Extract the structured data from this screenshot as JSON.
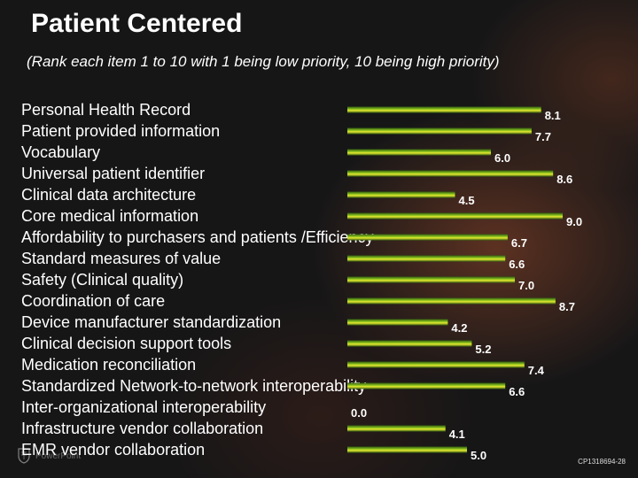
{
  "title": "Patient Centered",
  "subtitle": "(Rank each item 1 to 10 with 1 being low priority, 10 being high priority)",
  "footer_code": "CP1318694-28",
  "watermark_text": "PowerPoint",
  "colors": {
    "bar_dark": "#2d5a10",
    "bar_mid": "#9acd20",
    "bar_light": "#e8e830",
    "label": "#ffffff",
    "background": "#161617"
  },
  "chart_data": {
    "type": "bar",
    "orientation": "horizontal",
    "categories": [
      "Personal Health Record",
      "Patient provided information",
      "Vocabulary",
      "Universal patient identifier",
      "Clinical data architecture",
      "Core medical information",
      "Affordability to purchasers and patients /Efficiency",
      "Standard measures of value",
      "Safety (Clinical quality)",
      "Coordination of care",
      "Device manufacturer standardization",
      "Clinical decision support tools",
      "Medication reconciliation",
      "Standardized Network-to-network interoperability",
      "Inter-organizational interoperability",
      "Infrastructure vendor collaboration",
      "EMR vendor collaboration"
    ],
    "values": [
      8.1,
      7.7,
      6.0,
      8.6,
      4.5,
      9.0,
      6.7,
      6.6,
      7.0,
      8.7,
      4.2,
      5.2,
      7.4,
      6.6,
      0.0,
      4.1,
      5.0
    ],
    "value_labels": [
      "8.1",
      "7.7",
      "6.0",
      "8.6",
      "4.5",
      "9.0",
      "6.7",
      "6.6",
      "7.0",
      "8.7",
      "4.2",
      "5.2",
      "7.4",
      "6.6",
      "0.0",
      "4.1",
      "5.0"
    ],
    "xlim": [
      0,
      9.0
    ],
    "grid": false,
    "legend": false
  }
}
